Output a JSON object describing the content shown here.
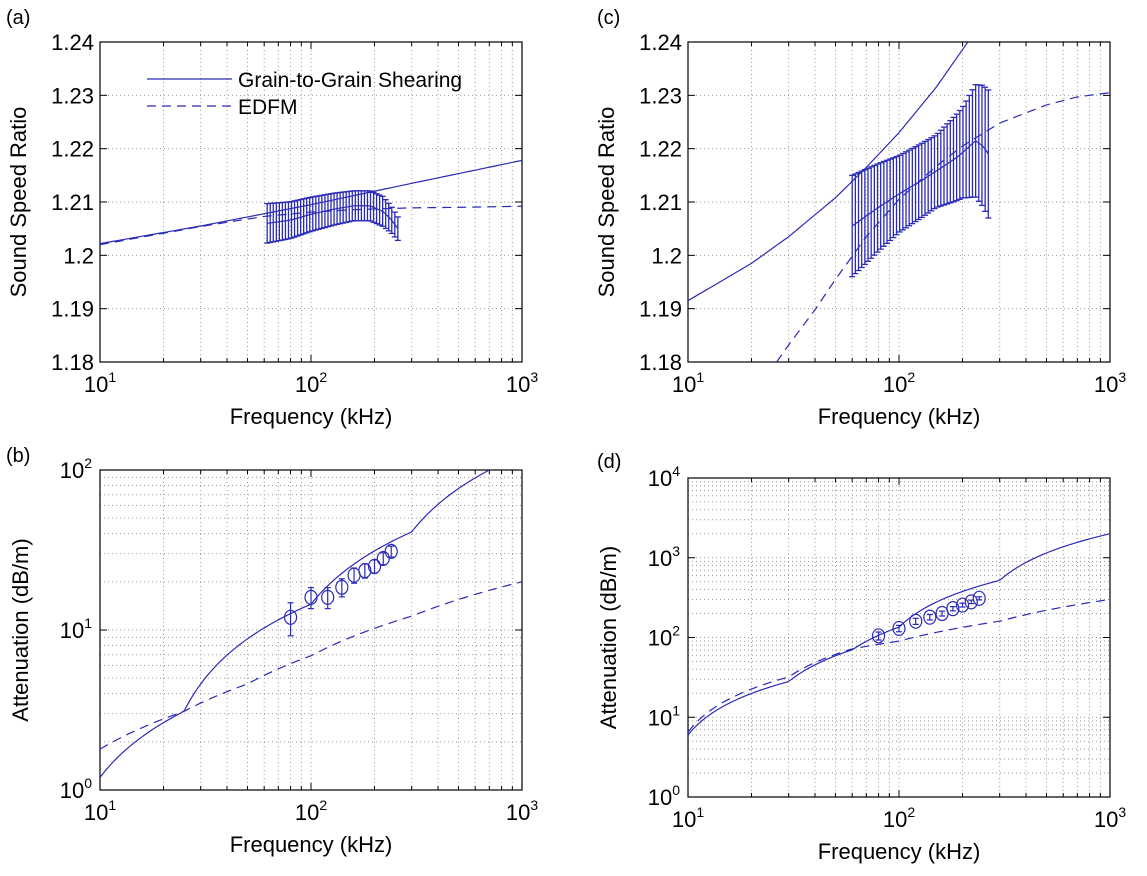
{
  "colors": {
    "series": "#2a2ab8",
    "grid": "#9a9a9a",
    "axis": "#000000"
  },
  "legend": {
    "position": "top-left",
    "entries": [
      {
        "label": "Grain-to-Grain Shearing",
        "style": "solid"
      },
      {
        "label": "EDFM",
        "style": "dashed"
      }
    ]
  },
  "chart_data": [
    {
      "panel": "(a)",
      "type": "line",
      "xscale": "log",
      "yscale": "linear",
      "xlim": [
        10,
        1000
      ],
      "ylim": [
        1.18,
        1.24
      ],
      "xlabel": "Frequency (kHz)",
      "ylabel": "Sound Speed Ratio",
      "grid": true,
      "xticks": [
        {
          "v": 10,
          "b": "10",
          "e": "1"
        },
        {
          "v": 100,
          "b": "10",
          "e": "2"
        },
        {
          "v": 1000,
          "b": "10",
          "e": "3"
        }
      ],
      "yticks": [
        {
          "v": 1.18,
          "t": "1.18"
        },
        {
          "v": 1.19,
          "t": "1.19"
        },
        {
          "v": 1.2,
          "t": "1.2"
        },
        {
          "v": 1.21,
          "t": "1.21"
        },
        {
          "v": 1.22,
          "t": "1.22"
        },
        {
          "v": 1.23,
          "t": "1.23"
        },
        {
          "v": 1.24,
          "t": "1.24"
        }
      ],
      "series": [
        {
          "name": "Grain-to-Grain Shearing",
          "style": "solid",
          "x": [
            10,
            30,
            100,
            300,
            1000
          ],
          "y": [
            1.2022,
            1.2055,
            1.2095,
            1.2135,
            1.2178
          ]
        },
        {
          "name": "EDFM",
          "style": "dashed",
          "x": [
            10,
            30,
            60,
            100,
            150,
            200,
            300,
            500,
            1000
          ],
          "y": [
            1.202,
            1.2054,
            1.2073,
            1.2081,
            1.2085,
            1.2087,
            1.2089,
            1.209,
            1.2092
          ]
        }
      ],
      "errorbars": {
        "x_range": [
          62,
          258
        ],
        "count": 44,
        "center_x": [
          62,
          80,
          100,
          130,
          160,
          190,
          220,
          240,
          258
        ],
        "center_y": [
          1.206,
          1.2066,
          1.2077,
          1.2087,
          1.2093,
          1.2093,
          1.2082,
          1.2067,
          1.205
        ],
        "half_x": [
          62,
          100,
          160,
          220,
          258
        ],
        "half_y": [
          0.0037,
          0.0032,
          0.0028,
          0.0028,
          0.0022
        ]
      }
    },
    {
      "panel": "(c)",
      "type": "line",
      "xscale": "log",
      "yscale": "linear",
      "xlim": [
        10,
        1000
      ],
      "ylim": [
        1.18,
        1.24
      ],
      "xlabel": "Frequency (kHz)",
      "ylabel": "Sound Speed Ratio",
      "grid": true,
      "xticks": [
        {
          "v": 10,
          "b": "10",
          "e": "1"
        },
        {
          "v": 100,
          "b": "10",
          "e": "2"
        },
        {
          "v": 1000,
          "b": "10",
          "e": "3"
        }
      ],
      "yticks": [
        {
          "v": 1.18,
          "t": "1.18"
        },
        {
          "v": 1.19,
          "t": "1.19"
        },
        {
          "v": 1.2,
          "t": "1.2"
        },
        {
          "v": 1.21,
          "t": "1.21"
        },
        {
          "v": 1.22,
          "t": "1.22"
        },
        {
          "v": 1.23,
          "t": "1.23"
        },
        {
          "v": 1.24,
          "t": "1.24"
        }
      ],
      "series": [
        {
          "name": "Grain-to-Grain Shearing",
          "style": "solid",
          "x": [
            10,
            20,
            30,
            50,
            70,
            100,
            150,
            212
          ],
          "y": [
            1.1915,
            1.1985,
            1.2035,
            1.2108,
            1.2165,
            1.223,
            1.2315,
            1.24
          ]
        },
        {
          "name": "EDFM",
          "style": "dashed",
          "x": [
            26.3,
            30,
            40,
            50,
            70,
            100,
            150,
            200,
            300,
            500,
            700,
            1000
          ],
          "y": [
            1.18,
            1.1832,
            1.1898,
            1.1955,
            1.2035,
            1.2105,
            1.2167,
            1.2205,
            1.2248,
            1.2282,
            1.2297,
            1.2305
          ]
        }
      ],
      "errorbars": {
        "x_range": [
          60,
          265
        ],
        "count": 44,
        "center_x": [
          60,
          80,
          100,
          130,
          160,
          190,
          210,
          230,
          250,
          265
        ],
        "center_y": [
          1.2055,
          1.209,
          1.2115,
          1.2142,
          1.2165,
          1.2185,
          1.22,
          1.2215,
          1.2205,
          1.219
        ],
        "half_x": [
          60,
          100,
          150,
          200,
          230,
          265
        ],
        "half_y": [
          0.0095,
          0.0072,
          0.0068,
          0.0085,
          0.0105,
          0.012
        ]
      }
    },
    {
      "panel": "(b)",
      "type": "line",
      "xscale": "log",
      "yscale": "log",
      "xlim": [
        10,
        1000
      ],
      "ylim": [
        1,
        100
      ],
      "xlabel": "Frequency (kHz)",
      "ylabel": "Attenuation (dB/m)",
      "grid": true,
      "xticks": [
        {
          "v": 10,
          "b": "10",
          "e": "1"
        },
        {
          "v": 100,
          "b": "10",
          "e": "2"
        },
        {
          "v": 1000,
          "b": "10",
          "e": "3"
        }
      ],
      "yticks": [
        {
          "v": 1,
          "b": "10",
          "e": "0"
        },
        {
          "v": 10,
          "b": "10",
          "e": "1"
        },
        {
          "v": 100,
          "b": "10",
          "e": "2"
        }
      ],
      "series": [
        {
          "name": "Grain-to-Grain Shearing",
          "style": "solid",
          "x": [
            10,
            25,
            100,
            300,
            700
          ],
          "y": [
            1.2,
            3.1,
            14.5,
            41,
            100
          ]
        },
        {
          "name": "EDFM",
          "style": "dashed",
          "x": [
            10,
            25,
            50,
            100,
            300,
            1000
          ],
          "y": [
            1.8,
            3.1,
            4.6,
            6.9,
            12.2,
            20
          ]
        }
      ],
      "points": {
        "x": [
          80,
          100,
          120,
          140,
          160,
          180,
          200,
          220,
          240
        ],
        "y": [
          12,
          16,
          16,
          18.5,
          22,
          23.5,
          25,
          28,
          31
        ],
        "err": [
          2.8,
          2.4,
          2.4,
          2.4,
          2.4,
          2.4,
          2.4,
          2.4,
          2.4
        ]
      }
    },
    {
      "panel": "(d)",
      "type": "line",
      "xscale": "log",
      "yscale": "log",
      "xlim": [
        10,
        1000
      ],
      "ylim": [
        1,
        10000
      ],
      "xlabel": "Frequency (kHz)",
      "ylabel": "Attenuation (dB/m)",
      "grid": true,
      "xticks": [
        {
          "v": 10,
          "b": "10",
          "e": "1"
        },
        {
          "v": 100,
          "b": "10",
          "e": "2"
        },
        {
          "v": 1000,
          "b": "10",
          "e": "3"
        }
      ],
      "yticks": [
        {
          "v": 1,
          "b": "10",
          "e": "0"
        },
        {
          "v": 10,
          "b": "10",
          "e": "1"
        },
        {
          "v": 100,
          "b": "10",
          "e": "2"
        },
        {
          "v": 1000,
          "b": "10",
          "e": "3"
        },
        {
          "v": 10000,
          "b": "10",
          "e": "4"
        }
      ],
      "series": [
        {
          "name": "Grain-to-Grain Shearing",
          "style": "solid",
          "x": [
            10,
            30,
            60,
            100,
            300,
            1000
          ],
          "y": [
            6,
            28,
            70,
            135,
            520,
            2000
          ]
        },
        {
          "name": "EDFM",
          "style": "dashed",
          "x": [
            10,
            30,
            60,
            100,
            300,
            1000
          ],
          "y": [
            6.5,
            32,
            72,
            90,
            160,
            300
          ]
        }
      ],
      "points": {
        "x": [
          80,
          100,
          120,
          140,
          160,
          180,
          200,
          220,
          240
        ],
        "y": [
          105,
          130,
          160,
          180,
          200,
          230,
          255,
          280,
          310
        ],
        "err": [
          12,
          12,
          14,
          14,
          14,
          14,
          14,
          14,
          14
        ]
      }
    }
  ]
}
